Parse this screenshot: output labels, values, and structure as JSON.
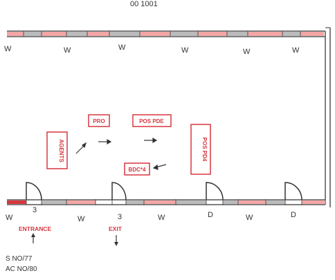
{
  "top_label": "00 1001",
  "wall_top_marks": [
    "W",
    "W",
    "W",
    "W",
    "W",
    "W"
  ],
  "wall_bottom_marks": [
    "W",
    "3",
    "W",
    "3",
    "W",
    "D",
    "W",
    "D"
  ],
  "boxes": {
    "agents": "AGENTS",
    "pro": "PRO",
    "pos_pde": "POS PDE",
    "pos_pd4": "POS PD4",
    "bdc": "BDC*4"
  },
  "entrance": "ENTRANCE",
  "exit": "EXIT",
  "notes": [
    "S NO/77",
    "AC NO/80"
  ],
  "colors": {
    "wall": "#555555",
    "accent": "#d9363e",
    "pink": "#f4a6a6"
  }
}
